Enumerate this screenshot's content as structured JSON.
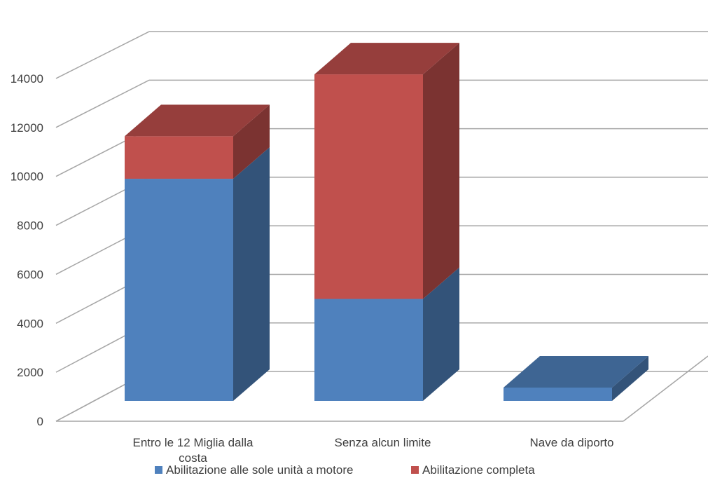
{
  "chart_data": {
    "type": "bar",
    "subtype": "stacked-3d",
    "title": "",
    "xlabel": "",
    "ylabel": "",
    "ylim": [
      0,
      14000
    ],
    "yticks": [
      "0",
      "2000",
      "4000",
      "6000",
      "8000",
      "10000",
      "12000",
      "14000"
    ],
    "grid": true,
    "legend_position": "bottom",
    "categories": [
      [
        "Entro le 12 Miglia dalla",
        "costa"
      ],
      [
        "Senza alcun limite"
      ],
      [
        "Nave da diporto"
      ]
    ],
    "series": [
      {
        "name": "Abilitazione alle sole unità a motore",
        "values": [
          9150,
          4200,
          550
        ]
      },
      {
        "name": "Abilitazione completa",
        "values": [
          1750,
          9250,
          0
        ]
      }
    ],
    "colors": {
      "series": [
        "#4f81bd",
        "#c0504d"
      ],
      "grid": "#a6a6a6",
      "text": "#404040"
    }
  }
}
